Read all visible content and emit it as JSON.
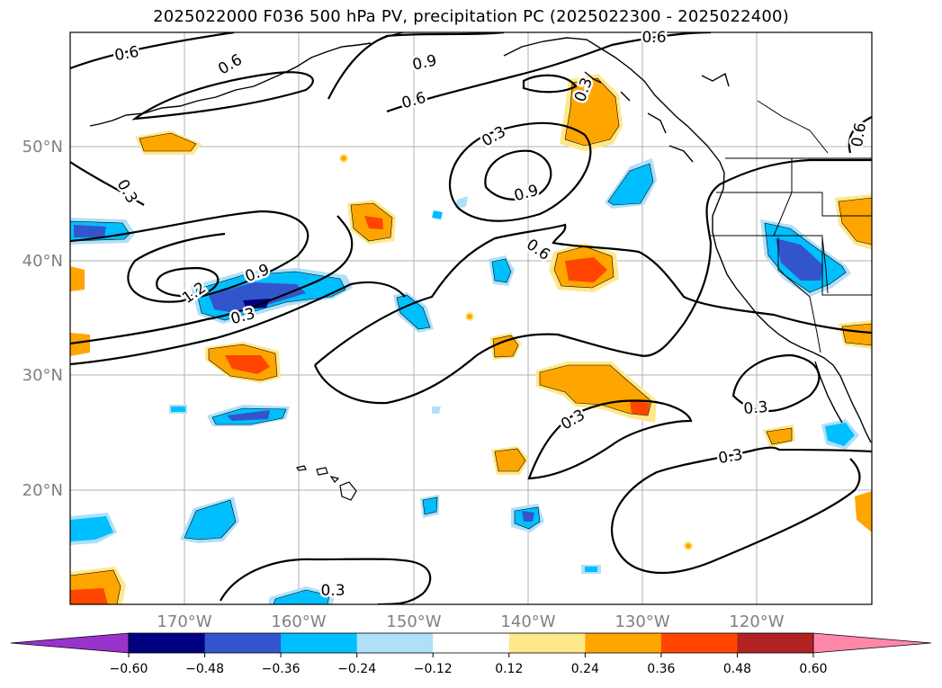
{
  "title": "2025022000 F036 500 hPa PV, precipitation PC (2025022300 - 2025022400)",
  "map": {
    "lon_range": [
      -180,
      -110
    ],
    "lat_range": [
      10,
      60
    ],
    "lat_labels": [
      "20°N",
      "30°N",
      "40°N",
      "50°N"
    ],
    "lon_labels": [
      "170°W",
      "160°W",
      "150°W",
      "140°W",
      "130°W",
      "120°W"
    ],
    "gridlines": true
  },
  "contour_labels": [
    "0.6",
    "0.6",
    "0.9",
    "0.6",
    "0.3",
    "0.6",
    "0.3",
    "0.6",
    "0.9",
    "0.6",
    "0.3",
    "1.2",
    "0.9",
    "0.3",
    "0.3",
    "0.3",
    "0.3",
    "0.3"
  ],
  "colorbar": {
    "ticks": [
      "−0.60",
      "−0.48",
      "−0.36",
      "−0.24",
      "−0.12",
      "0.12",
      "0.24",
      "0.36",
      "0.48",
      "0.60"
    ],
    "colors": [
      "#9933cc",
      "#000080",
      "#3355cc",
      "#00bfff",
      "#aee0fa",
      "#ffffff",
      "#ffe88a",
      "#ffa500",
      "#ff4500",
      "#b22222",
      "#ff88aa"
    ],
    "extend": "both"
  }
}
